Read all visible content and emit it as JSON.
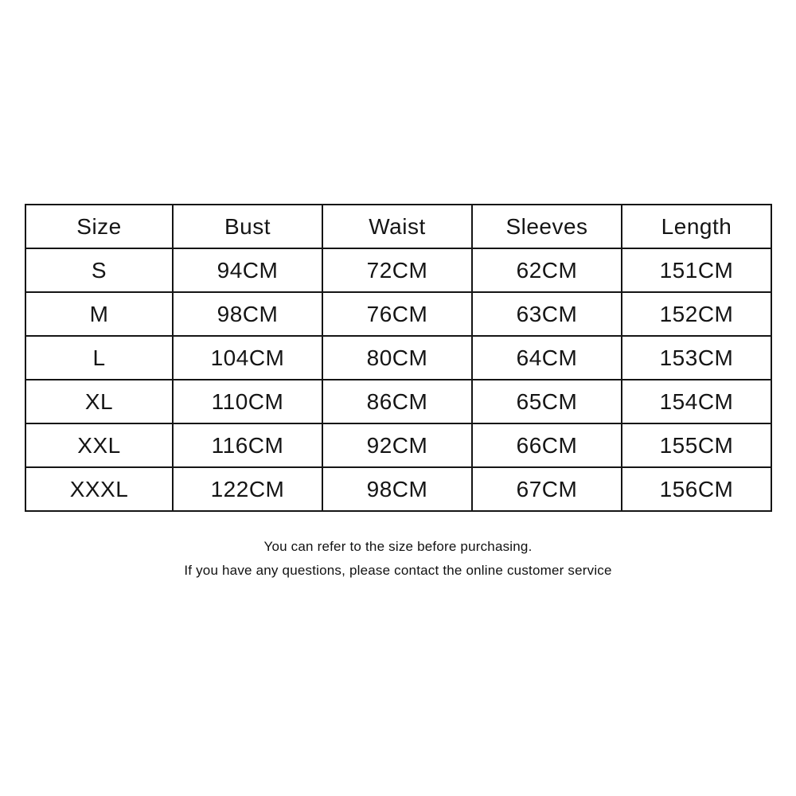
{
  "table": {
    "headers": [
      "Size",
      "Bust",
      "Waist",
      "Sleeves",
      "Length"
    ],
    "rows": [
      [
        "S",
        "94CM",
        "72CM",
        "62CM",
        "151CM"
      ],
      [
        "M",
        "98CM",
        "76CM",
        "63CM",
        "152CM"
      ],
      [
        "L",
        "104CM",
        "80CM",
        "64CM",
        "153CM"
      ],
      [
        "XL",
        "110CM",
        "86CM",
        "65CM",
        "154CM"
      ],
      [
        "XXL",
        "116CM",
        "92CM",
        "66CM",
        "155CM"
      ],
      [
        "XXXL",
        "122CM",
        "98CM",
        "67CM",
        "156CM"
      ]
    ]
  },
  "footer": {
    "line1": "You can refer to the size before purchasing.",
    "line2": "If you have any questions, please contact the online customer service"
  },
  "colors": {
    "text": "#151515",
    "border": "#151515",
    "background": "#ffffff"
  }
}
